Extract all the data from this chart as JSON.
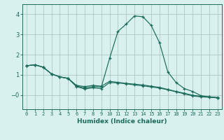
{
  "xlabel": "Humidex (Indice chaleur)",
  "bg_color": "#d8f0ee",
  "grid_color": "#b0c8c4",
  "line_color": "#1a6b5a",
  "xlim": [
    -0.5,
    23.5
  ],
  "ylim": [
    -0.7,
    4.5
  ],
  "xticks": [
    0,
    1,
    2,
    3,
    4,
    5,
    6,
    7,
    8,
    9,
    10,
    11,
    12,
    13,
    14,
    15,
    16,
    17,
    18,
    19,
    20,
    21,
    22,
    23
  ],
  "yticks": [
    0,
    1,
    2,
    3,
    4
  ],
  "line1_x": [
    0,
    1,
    2,
    3,
    4,
    5,
    6,
    7,
    8,
    9,
    10,
    11,
    12,
    13,
    14,
    15,
    16,
    17,
    18,
    19,
    20,
    21,
    22,
    23
  ],
  "line1_y": [
    1.45,
    1.5,
    1.38,
    1.05,
    0.9,
    0.83,
    0.48,
    0.42,
    0.48,
    0.44,
    0.68,
    0.63,
    0.58,
    0.54,
    0.5,
    0.44,
    0.38,
    0.28,
    0.18,
    0.09,
    -0.01,
    -0.06,
    -0.09,
    -0.12
  ],
  "line2_x": [
    0,
    1,
    2,
    3,
    4,
    5,
    6,
    7,
    8,
    9,
    10,
    11,
    12,
    13,
    14,
    15,
    16,
    17,
    18,
    19,
    20,
    21,
    22,
    23
  ],
  "line2_y": [
    1.45,
    1.5,
    1.38,
    1.05,
    0.9,
    0.83,
    0.45,
    0.35,
    0.42,
    0.4,
    1.82,
    3.15,
    3.52,
    3.92,
    3.88,
    3.45,
    2.6,
    1.15,
    0.62,
    0.32,
    0.18,
    -0.03,
    -0.09,
    -0.13
  ],
  "line3_x": [
    0,
    1,
    2,
    3,
    4,
    5,
    6,
    7,
    8,
    9,
    10,
    11,
    12,
    13,
    14,
    15,
    16,
    17,
    18,
    19,
    20,
    21,
    22,
    23
  ],
  "line3_y": [
    1.45,
    1.5,
    1.38,
    1.05,
    0.9,
    0.82,
    0.42,
    0.3,
    0.36,
    0.32,
    0.62,
    0.6,
    0.56,
    0.5,
    0.46,
    0.4,
    0.35,
    0.26,
    0.16,
    0.06,
    -0.04,
    -0.09,
    -0.11,
    -0.14
  ]
}
